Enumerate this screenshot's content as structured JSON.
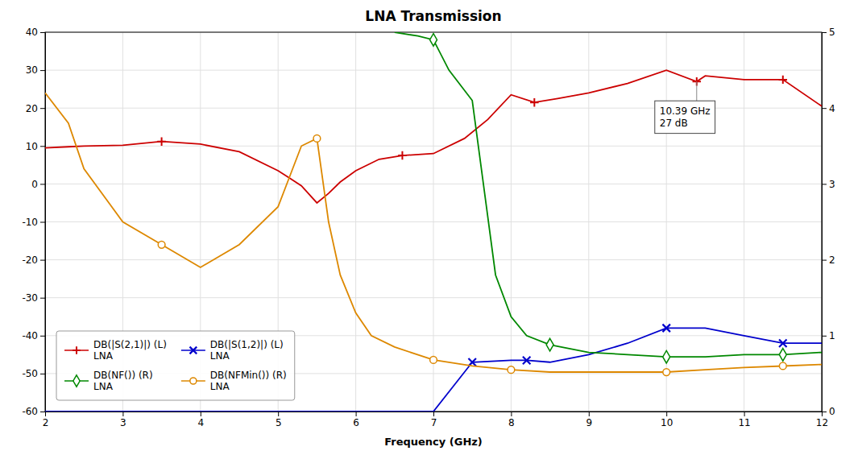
{
  "chart_data": {
    "type": "line",
    "title": "LNA Transmission",
    "xlabel": "Frequency (GHz)",
    "xlim": [
      2,
      12
    ],
    "xticks": [
      2,
      3,
      4,
      5,
      6,
      7,
      8,
      9,
      10,
      11,
      12
    ],
    "ylim": [
      -60,
      40
    ],
    "yticks": [
      -60,
      -50,
      -40,
      -30,
      -20,
      -10,
      0,
      10,
      20,
      30,
      40
    ],
    "y2lim": [
      0,
      5
    ],
    "y2ticks": [
      0,
      1,
      2,
      3,
      4,
      5
    ],
    "grid": true,
    "legend": "lower left",
    "annotations": [
      {
        "text": "10.39 GHz\n27 dB",
        "x": 10.39,
        "y": 27
      }
    ],
    "series": [
      {
        "name": "DB(|S(2,1)|) (L)\nLNA",
        "color": "#cc0000",
        "marker": "plus",
        "x": [
          2.0,
          2.3,
          2.5,
          3.0,
          3.5,
          4.0,
          4.5,
          5.0,
          5.15,
          5.3,
          5.5,
          5.65,
          5.8,
          6.0,
          6.3,
          6.6,
          7.0,
          7.4,
          7.7,
          8.0,
          8.3,
          8.6,
          9.0,
          9.5,
          10.0,
          10.39,
          10.5,
          11.0,
          11.5,
          12.0
        ],
        "values": [
          9.5,
          9.8,
          10.0,
          10.2,
          11.2,
          10.5,
          8.5,
          3.5,
          1.5,
          -0.5,
          -5.0,
          -2.5,
          0.5,
          3.5,
          6.5,
          7.5,
          8.0,
          12.0,
          17.0,
          23.5,
          21.5,
          22.5,
          24.0,
          26.5,
          30.0,
          27.0,
          28.5,
          27.5,
          27.5,
          20.5
        ],
        "marker_x": [
          3.5,
          6.6,
          8.3,
          10.39,
          11.5
        ],
        "marker_values": [
          11.2,
          7.5,
          21.5,
          27.0,
          27.5
        ]
      },
      {
        "name": "DB(|S(1,2)|) (L)\nLNA",
        "color": "#0000cc",
        "marker": "x",
        "x": [
          2.0,
          3.0,
          4.0,
          5.0,
          6.0,
          6.5,
          7.0,
          7.5,
          8.0,
          8.2,
          8.5,
          9.0,
          9.5,
          10.0,
          10.5,
          11.0,
          11.5,
          12.0
        ],
        "values": [
          -60,
          -60,
          -60,
          -60,
          -60,
          -60,
          -60,
          -47,
          -46.5,
          -46.5,
          -47,
          -45,
          -42,
          -38,
          -38,
          -40,
          -42,
          -42
        ],
        "marker_x": [
          7.5,
          8.2,
          10.0,
          11.5
        ],
        "marker_values": [
          -47,
          -46.5,
          -38,
          -42
        ]
      },
      {
        "name": "DB(NF()) (R)\nLNA",
        "color": "#008800",
        "marker": "diamond",
        "axis": "y2",
        "x": [
          6.5,
          6.8,
          7.0,
          7.2,
          7.5,
          7.8,
          8.0,
          8.2,
          8.5,
          9.0,
          9.5,
          10.0,
          10.5,
          11.0,
          11.5,
          12.0
        ],
        "values": [
          5.0,
          4.95,
          4.9,
          4.5,
          4.1,
          1.8,
          1.25,
          1.0,
          0.88,
          0.78,
          0.75,
          0.72,
          0.72,
          0.75,
          0.75,
          0.78
        ],
        "marker_x": [
          7.0,
          8.5,
          10.0,
          11.5
        ],
        "marker_values": [
          4.9,
          0.88,
          0.72,
          0.75
        ]
      },
      {
        "name": "DB(NFMin()) (R)\nLNA",
        "color": "#dd8800",
        "marker": "circle",
        "axis": "y2",
        "x": [
          2.0,
          2.3,
          2.5,
          3.0,
          3.5,
          4.0,
          4.5,
          5.0,
          5.3,
          5.5,
          5.65,
          5.8,
          6.0,
          6.2,
          6.5,
          7.0,
          7.5,
          8.0,
          8.5,
          9.0,
          9.5,
          10.0,
          10.5,
          11.0,
          11.5,
          12.0
        ],
        "values": [
          4.2,
          3.8,
          3.2,
          2.5,
          2.2,
          1.9,
          2.2,
          2.7,
          3.5,
          3.6,
          2.5,
          1.8,
          1.3,
          1.0,
          0.85,
          0.68,
          0.6,
          0.55,
          0.52,
          0.52,
          0.52,
          0.52,
          0.55,
          0.58,
          0.6,
          0.62
        ],
        "marker_x": [
          3.5,
          5.5,
          7.0,
          8.0,
          10.0,
          11.5
        ],
        "marker_values": [
          2.2,
          3.6,
          0.68,
          0.55,
          0.52,
          0.6
        ]
      }
    ]
  }
}
